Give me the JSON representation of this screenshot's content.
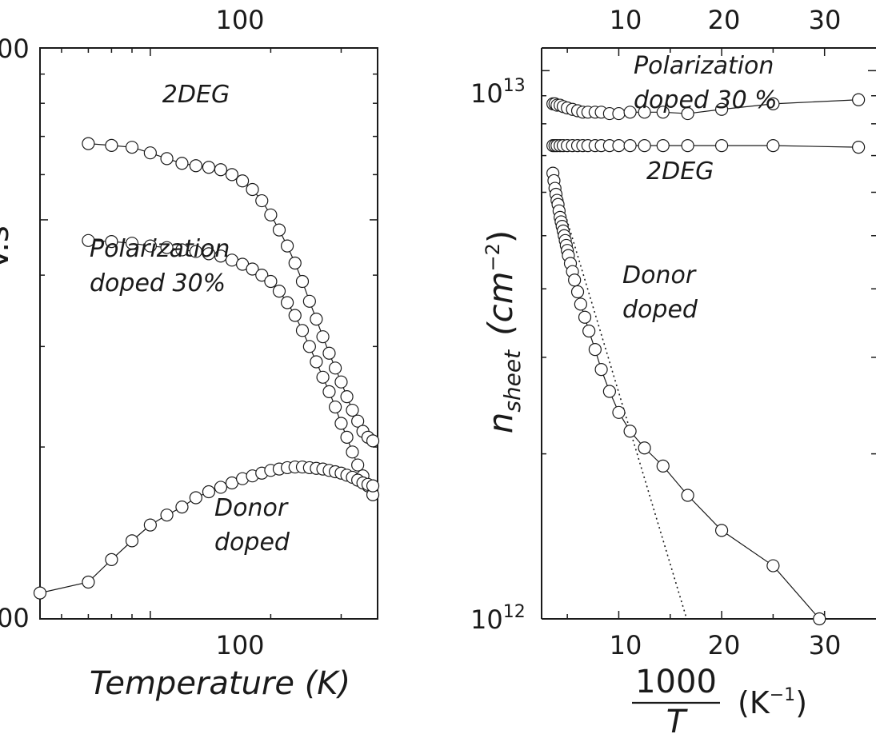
{
  "chart_data": [
    {
      "type": "scatter",
      "title": "",
      "xlabel": "Temperature (K)",
      "ylabel_visible_fragment": "V.s",
      "x_scale": "log",
      "y_scale": "log",
      "xlim": [
        53,
        370
      ],
      "ylim": [
        100,
        1000
      ],
      "x_ticks": [
        100
      ],
      "x_tick_labels": [
        "100"
      ],
      "y_tick_labels_partial": [
        "00",
        "00"
      ],
      "series": [
        {
          "name": "2DEG",
          "x": [
            70,
            80,
            90,
            100,
            110,
            120,
            130,
            140,
            150,
            160,
            170,
            180,
            190,
            200,
            210,
            220,
            230,
            240,
            250,
            260,
            270,
            280,
            290,
            300,
            310,
            320,
            330,
            340,
            350,
            360
          ],
          "y": [
            680,
            675,
            670,
            655,
            640,
            628,
            622,
            618,
            612,
            600,
            585,
            565,
            540,
            510,
            480,
            450,
            420,
            390,
            360,
            335,
            312,
            292,
            275,
            260,
            245,
            232,
            222,
            213,
            208,
            205
          ]
        },
        {
          "name": "Polarization doped 30%",
          "x": [
            70,
            80,
            90,
            100,
            110,
            120,
            130,
            140,
            150,
            160,
            170,
            180,
            190,
            200,
            210,
            220,
            230,
            240,
            250,
            260,
            270,
            280,
            290,
            300,
            310,
            320,
            330,
            340,
            350,
            360
          ],
          "y": [
            460,
            458,
            455,
            450,
            447,
            443,
            440,
            436,
            432,
            425,
            418,
            410,
            400,
            390,
            375,
            358,
            340,
            320,
            300,
            282,
            265,
            250,
            235,
            220,
            208,
            196,
            186,
            178,
            171,
            165
          ]
        },
        {
          "name": "Donor doped",
          "x": [
            53,
            70,
            80,
            90,
            100,
            110,
            120,
            130,
            140,
            150,
            160,
            170,
            180,
            190,
            200,
            210,
            220,
            230,
            240,
            250,
            260,
            270,
            280,
            290,
            300,
            310,
            320,
            330,
            340,
            350,
            360
          ],
          "y": [
            111,
            116,
            127,
            137,
            146,
            152,
            157,
            163,
            167,
            170,
            173,
            176,
            178,
            180,
            182,
            183,
            184,
            184.5,
            184.5,
            184,
            183.5,
            183,
            182,
            181,
            180,
            178.5,
            177,
            175,
            173,
            172,
            171
          ]
        }
      ],
      "annotations": [
        {
          "text": "2DEG"
        },
        {
          "text_lines": [
            "Polarization",
            "doped 30%"
          ]
        },
        {
          "text_lines": [
            "Donor",
            "doped"
          ]
        }
      ]
    },
    {
      "type": "scatter",
      "title": "",
      "xlabel_numerator": "1000",
      "xlabel_denominator": "T",
      "xlabel_unit_base": "(K",
      "xlabel_unit_sup": "−1",
      "xlabel_unit_close": ")",
      "ylabel_main": "n",
      "ylabel_sub": "sheet",
      "ylabel_unit_open": "(cm",
      "ylabel_unit_sup": "−2",
      "ylabel_unit_close": ")",
      "x_scale": "linear",
      "y_scale": "log",
      "xlim": [
        2.5,
        35
      ],
      "ylim": [
        1000000000000.0,
        11000000000000.0
      ],
      "x_ticks": [
        10,
        20,
        30
      ],
      "x_tick_labels": [
        "10",
        "20",
        "30"
      ],
      "top_x_tick_labels": [
        "10",
        "20",
        "30"
      ],
      "y_tick_labels": [
        {
          "base": "10",
          "exp": "13",
          "value": 10000000000000.0
        },
        {
          "base": "10",
          "exp": "12",
          "value": 1000000000000.0
        }
      ],
      "series": [
        {
          "name": "Polarization doped 30 %",
          "x": [
            3.6,
            3.8,
            4.0,
            4.3,
            4.6,
            5.0,
            5.5,
            6.0,
            6.5,
            7.0,
            7.7,
            8.3,
            9.1,
            10.0,
            11.1,
            12.5,
            14.3,
            16.7,
            20.0,
            25.0,
            33.3
          ],
          "y": [
            8700000000000.0,
            8700000000000.0,
            8650000000000.0,
            8650000000000.0,
            8600000000000.0,
            8550000000000.0,
            8500000000000.0,
            8450000000000.0,
            8400000000000.0,
            8400000000000.0,
            8400000000000.0,
            8400000000000.0,
            8350000000000.0,
            8350000000000.0,
            8400000000000.0,
            8400000000000.0,
            8400000000000.0,
            8350000000000.0,
            8500000000000.0,
            8700000000000.0,
            8850000000000.0
          ]
        },
        {
          "name": "2DEG",
          "x": [
            3.6,
            3.8,
            4.0,
            4.3,
            4.6,
            5.0,
            5.5,
            6.0,
            6.5,
            7.0,
            7.7,
            8.3,
            9.1,
            10.0,
            11.1,
            12.5,
            14.3,
            16.7,
            20.0,
            25.0,
            33.3
          ],
          "y": [
            7300000000000.0,
            7300000000000.0,
            7300000000000.0,
            7300000000000.0,
            7300000000000.0,
            7300000000000.0,
            7300000000000.0,
            7300000000000.0,
            7300000000000.0,
            7300000000000.0,
            7300000000000.0,
            7300000000000.0,
            7300000000000.0,
            7300000000000.0,
            7300000000000.0,
            7300000000000.0,
            7300000000000.0,
            7300000000000.0,
            7300000000000.0,
            7300000000000.0,
            7250000000000.0
          ]
        },
        {
          "name": "Donor doped",
          "x": [
            3.6,
            3.7,
            3.8,
            3.9,
            4.0,
            4.1,
            4.2,
            4.3,
            4.4,
            4.5,
            4.6,
            4.7,
            4.8,
            4.9,
            5.0,
            5.1,
            5.3,
            5.5,
            5.7,
            6.0,
            6.3,
            6.7,
            7.1,
            7.7,
            8.3,
            9.1,
            10.0,
            11.1,
            12.5,
            14.3,
            16.7,
            20.0,
            25.0,
            29.5
          ],
          "y": [
            6500000000000.0,
            6300000000000.0,
            6100000000000.0,
            5950000000000.0,
            5800000000000.0,
            5700000000000.0,
            5550000000000.0,
            5400000000000.0,
            5300000000000.0,
            5200000000000.0,
            5100000000000.0,
            5000000000000.0,
            4900000000000.0,
            4800000000000.0,
            4700000000000.0,
            4600000000000.0,
            4450000000000.0,
            4300000000000.0,
            4150000000000.0,
            3950000000000.0,
            3750000000000.0,
            3550000000000.0,
            3350000000000.0,
            3100000000000.0,
            2850000000000.0,
            2600000000000.0,
            2380000000000.0,
            2200000000000.0,
            2050000000000.0,
            1900000000000.0,
            1680000000000.0,
            1450000000000.0,
            1250000000000.0,
            1000000000000.0
          ]
        }
      ],
      "fit_line": {
        "style": "dotted",
        "x": [
          3.6,
          16.6
        ],
        "y": [
          6500000000000.0,
          1000000000000.0
        ]
      },
      "annotations": [
        {
          "text_lines": [
            "Polarization",
            "doped 30 %"
          ]
        },
        {
          "text": "2DEG"
        },
        {
          "text_lines": [
            "Donor",
            "doped"
          ]
        }
      ]
    }
  ]
}
